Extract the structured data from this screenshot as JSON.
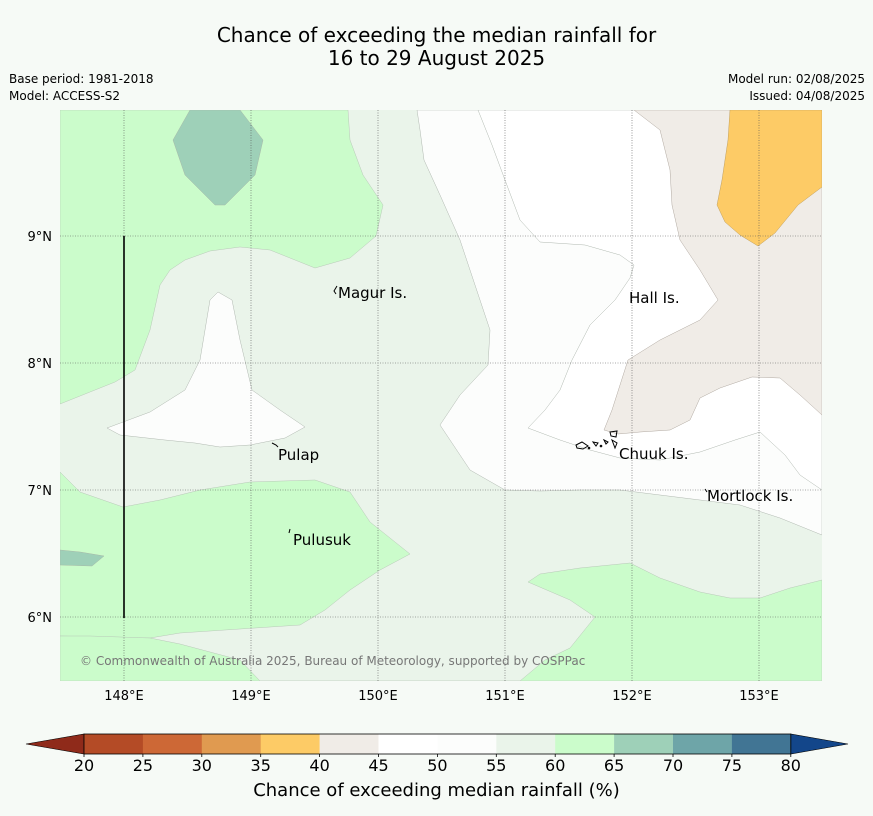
{
  "header": {
    "title_line1": "Chance of exceeding the median rainfall for",
    "title_line2": "16 to 29 August 2025",
    "base_period": "Base period: 1981-2018",
    "model": "Model: ACCESS-S2",
    "model_run": "Model run: 02/08/2025",
    "issued": "Issued: 04/08/2025"
  },
  "map": {
    "lon_ticks": [
      "148°E",
      "149°E",
      "150°E",
      "151°E",
      "152°E",
      "153°E"
    ],
    "lat_ticks": [
      "9°N",
      "8°N",
      "7°N",
      "6°N"
    ],
    "places": [
      "Magur Is.",
      "Hall Is.",
      "Pulap",
      "Chuuk Is.",
      "Mortlock Is.",
      "Pulusuk"
    ],
    "copyright": "© Commonwealth of Australia 2025, Bureau of Meteorology, supported by COSPPac"
  },
  "colorbar": {
    "ticks": [
      "20",
      "25",
      "30",
      "35",
      "40",
      "45",
      "50",
      "55",
      "60",
      "65",
      "70",
      "75",
      "80"
    ],
    "colors": [
      "#b44b26",
      "#cd6836",
      "#e09a50",
      "#fdcb66",
      "#f0ece7",
      "#ffffff",
      "#fcfdfc",
      "#eaf4ea",
      "#cbfccb",
      "#9ed0b8",
      "#6ea5a8",
      "#417594"
    ],
    "low_extend_color": "#8f2a1a",
    "high_extend_color": "#13468a",
    "label": "Chance of exceeding median rainfall (%)"
  }
}
